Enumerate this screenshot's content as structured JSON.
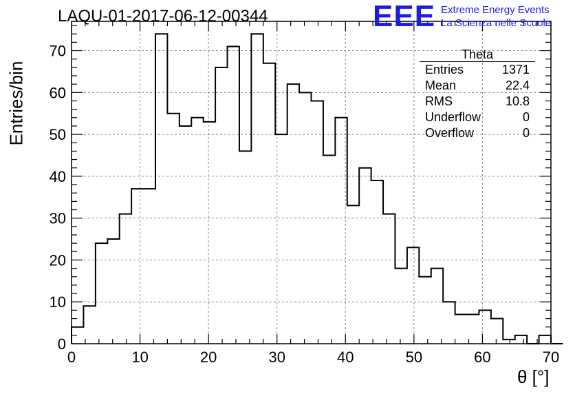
{
  "header": {
    "title": "LAQU-01-2017-06-12-00344"
  },
  "brand": {
    "mark": "EEE",
    "line1": "Extreme Energy Events",
    "line2": "La Scienza nelle Scuole"
  },
  "stats_box": {
    "title": "Theta",
    "rows": [
      {
        "label": "Entries",
        "value": "1371"
      },
      {
        "label": "Mean",
        "value": "22.4"
      },
      {
        "label": "RMS",
        "value": "10.8"
      },
      {
        "label": "Underflow",
        "value": "0"
      },
      {
        "label": "Overflow",
        "value": "0"
      }
    ]
  },
  "chart_data": {
    "type": "histogram",
    "title": "LAQU-01-2017-06-12-00344",
    "xlabel": "θ [°]",
    "ylabel": "Entries/bin",
    "xlim": [
      0,
      70
    ],
    "ylim": [
      0,
      77
    ],
    "bin_width": 1.75,
    "bins_start": 0,
    "values": [
      4,
      9,
      24,
      25,
      31,
      37,
      37,
      74,
      55,
      52,
      54,
      53,
      66,
      71,
      46,
      74,
      67,
      50,
      62,
      60,
      58,
      45,
      54,
      33,
      42,
      39,
      31,
      18,
      23,
      16,
      18,
      10,
      7,
      7,
      8,
      6,
      1,
      2,
      0,
      2,
      0
    ],
    "x_ticks": [
      0,
      10,
      20,
      30,
      40,
      50,
      60,
      70
    ],
    "y_ticks": [
      0,
      10,
      20,
      30,
      40,
      50,
      60,
      70
    ],
    "grid": true,
    "line_color": "#000000"
  }
}
